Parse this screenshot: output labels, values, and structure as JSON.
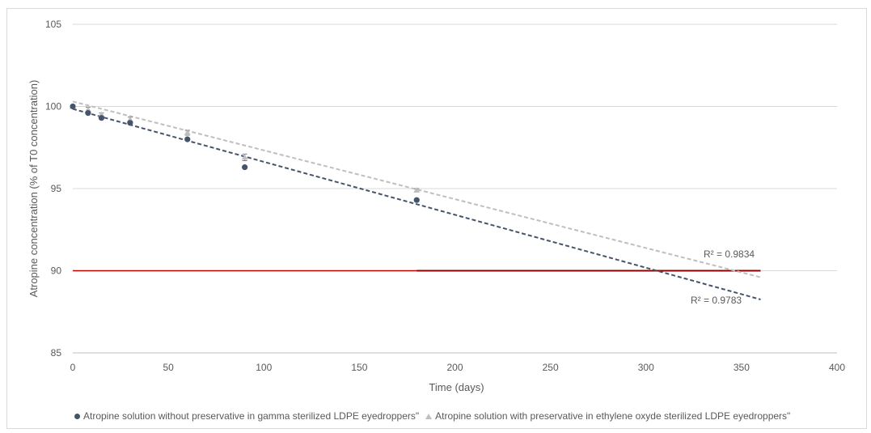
{
  "chart_data": {
    "type": "scatter",
    "title": "",
    "xlabel": "Time (days)",
    "ylabel": "Atropine concentration (% of T0 concentration)",
    "xlim": [
      0,
      400
    ],
    "ylim": [
      85,
      105
    ],
    "x_ticks": [
      "0",
      "50",
      "100",
      "150",
      "200",
      "250",
      "300",
      "350",
      "400"
    ],
    "y_ticks": [
      "85",
      "90",
      "95",
      "100",
      "105"
    ],
    "grid": true,
    "legend_position": "bottom",
    "series": [
      {
        "name": "Atropine solution without preservative in gamma sterilized LDPE eyedroppers\"",
        "marker": "circle",
        "color": "#44546a",
        "x": [
          0,
          8,
          15,
          30,
          60,
          90,
          180
        ],
        "y": [
          100.0,
          99.6,
          99.3,
          99.0,
          98.0,
          96.3,
          94.3
        ],
        "trendline": {
          "x": [
            0,
            360
          ],
          "y": [
            99.85,
            88.25
          ],
          "r2_label": "R² = 0.9783"
        }
      },
      {
        "name": "Atropine solution with preservative  in ethylene oxyde sterilized LDPE  eyedroppers\"",
        "marker": "triangle",
        "color": "#bfbfbf",
        "x": [
          0,
          8,
          15,
          30,
          60,
          90,
          180
        ],
        "y": [
          100.0,
          99.8,
          99.5,
          99.2,
          98.4,
          96.9,
          94.9
        ],
        "error": [
          0.1,
          0.15,
          0.1,
          0.15,
          0.15,
          0.2,
          0.1
        ],
        "trendline": {
          "x": [
            0,
            360
          ],
          "y": [
            100.3,
            89.6
          ],
          "r2_label": "R² = 0.9834"
        }
      }
    ],
    "reference_line": {
      "y": 90,
      "x": [
        0,
        360
      ],
      "color": "#c00000"
    }
  }
}
